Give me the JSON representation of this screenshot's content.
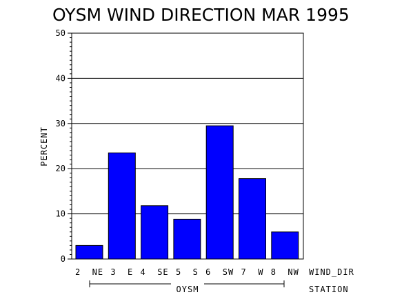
{
  "chart_data": {
    "type": "bar",
    "title": "OYSM WIND DIRECTION MAR 1995",
    "ylabel": "PERCENT",
    "xlabel": "WIND_DIR",
    "group_label": "STATION",
    "group_value": "OYSM",
    "categories": [
      "2 NE",
      "3 E",
      "4 SE",
      "5 S",
      "6 SW",
      "7 W",
      "8 NW"
    ],
    "values": [
      3.0,
      23.5,
      11.8,
      8.8,
      29.5,
      17.8,
      6.0
    ],
    "ylim": [
      0,
      50
    ],
    "yticks": [
      "0",
      "10",
      "20",
      "30",
      "40",
      "50"
    ],
    "grid": true,
    "bar_color": "#0000ff"
  }
}
